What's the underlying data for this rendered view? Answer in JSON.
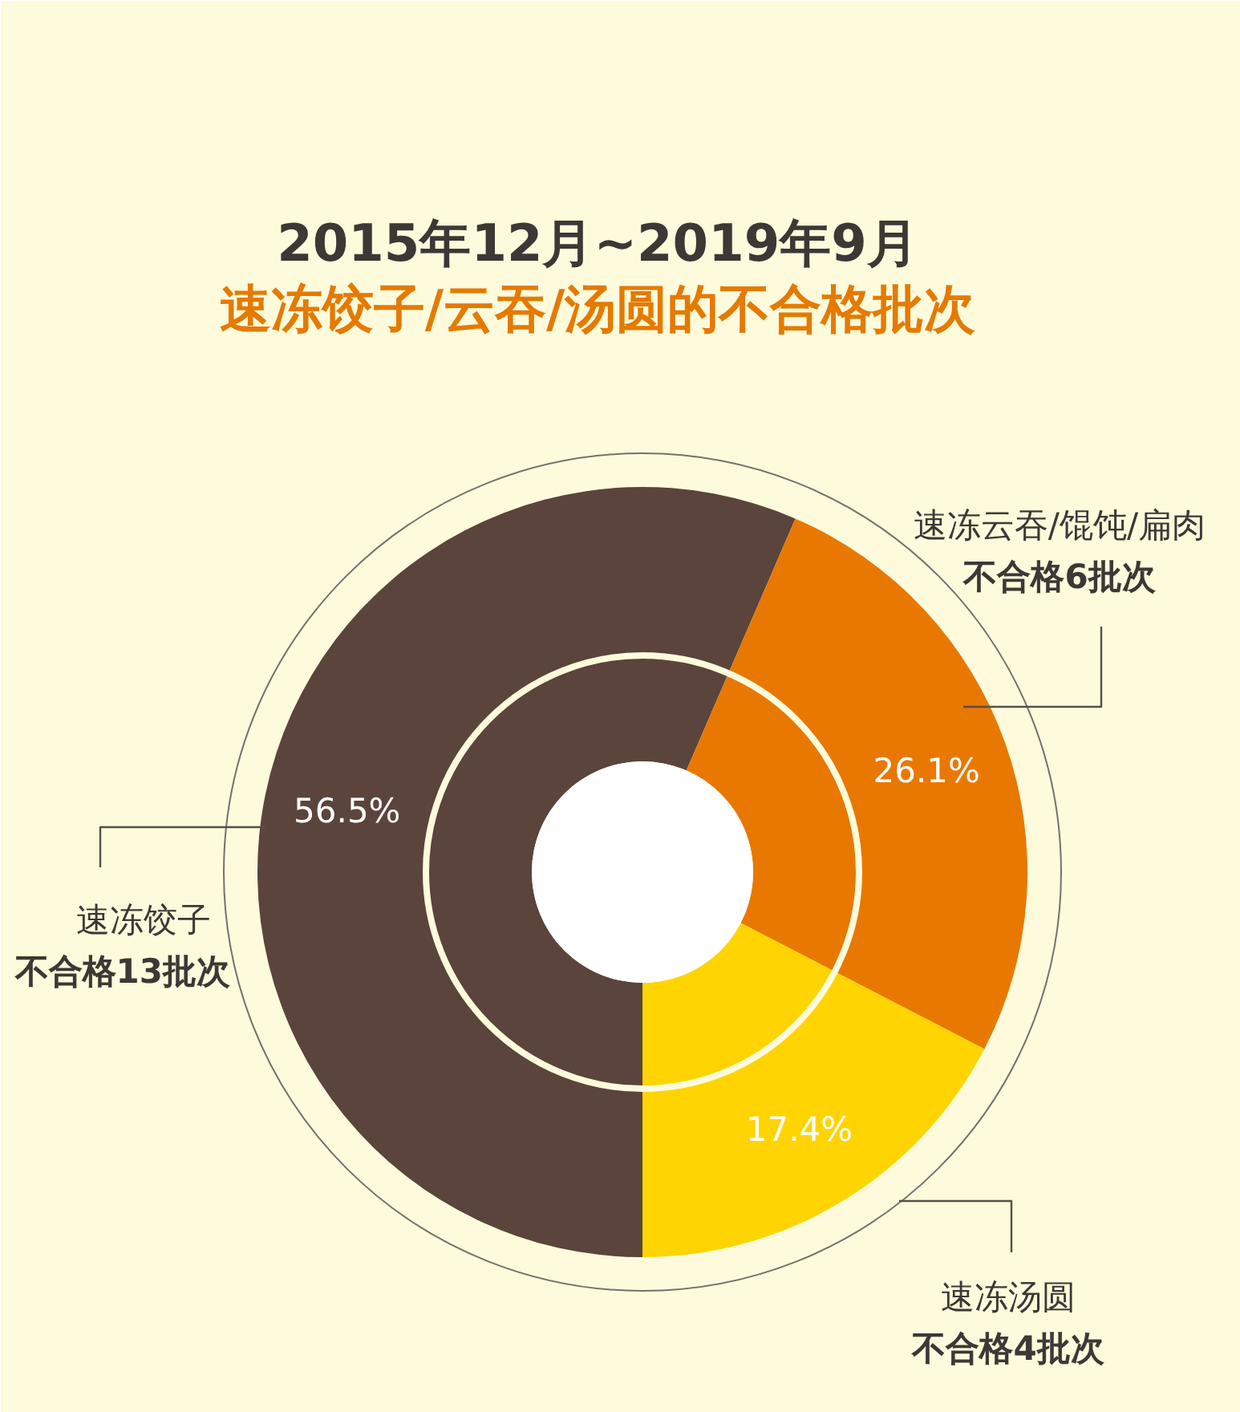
{
  "chart_data": {
    "type": "donut",
    "title": "2015年12月~2019年9月",
    "subtitle": "速冻饺子/云吞/汤圆的不合格批次",
    "categories": [
      "速冻饺子",
      "速冻云吞/馄饨/扁肉",
      "速冻汤圆"
    ],
    "values": [
      56.5,
      26.1,
      17.4
    ],
    "value_labels": [
      "56.5%",
      "26.1%",
      "17.4%"
    ],
    "colors": [
      "#5a443b",
      "#e97800",
      "#ffd400"
    ],
    "annotations": [
      "不合格13批次",
      "不合格6批次",
      "不合格4批次"
    ]
  }
}
